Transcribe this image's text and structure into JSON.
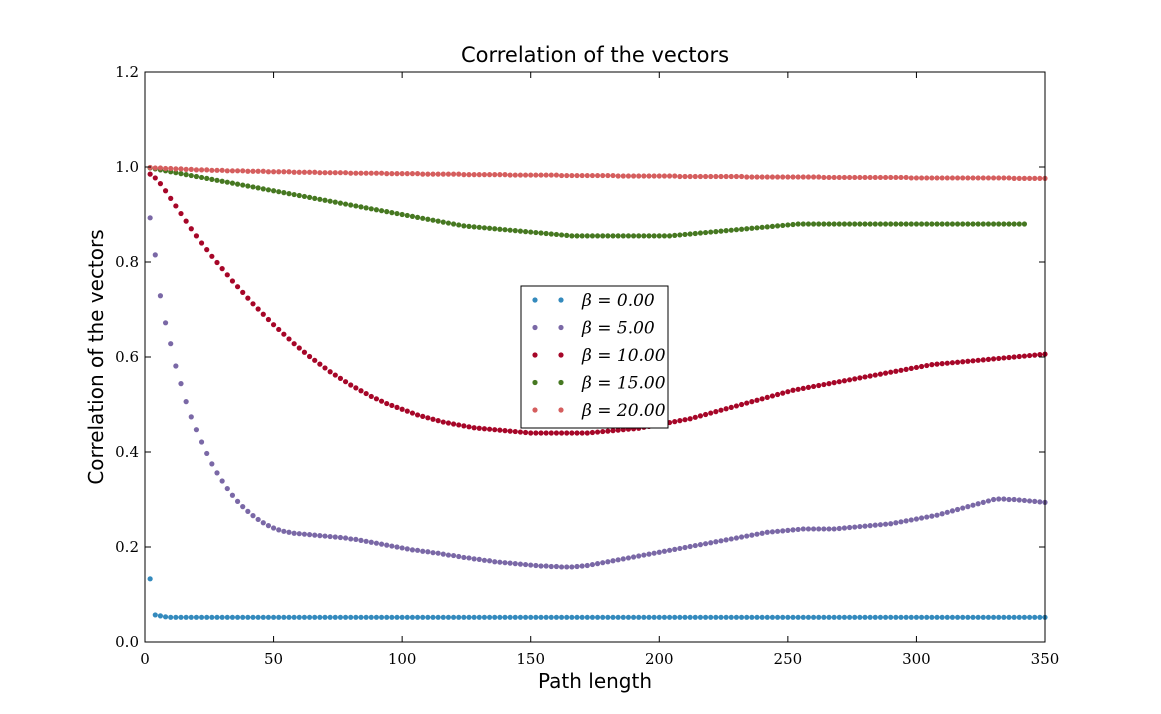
{
  "chart_data": {
    "type": "scatter",
    "title": "Correlation of the vectors",
    "xlabel": "Path length",
    "ylabel": "Correlation of the vectors",
    "xlim": [
      0,
      350
    ],
    "ylim": [
      0.0,
      1.2
    ],
    "xticks": [
      0,
      50,
      100,
      150,
      200,
      250,
      300,
      350
    ],
    "yticks": [
      0.0,
      0.2,
      0.4,
      0.6,
      0.8,
      1.0,
      1.2
    ],
    "xtick_labels": [
      "0",
      "50",
      "100",
      "150",
      "200",
      "250",
      "300",
      "350"
    ],
    "ytick_labels": [
      "0.0",
      "0.2",
      "0.4",
      "0.6",
      "0.8",
      "1.0",
      "1.2"
    ],
    "grid": false,
    "legend_position": "center",
    "x_step": 2,
    "series": [
      {
        "name": "β = 0.00",
        "color": "#348ABD",
        "y": [
          0.133,
          0.057,
          0.055,
          0.053,
          0.052,
          0.052,
          0.052,
          0.052,
          0.052,
          0.052,
          0.052,
          0.052,
          0.052,
          0.052,
          0.052,
          0.052,
          0.052,
          0.052,
          0.052,
          0.052,
          0.052,
          0.052,
          0.052,
          0.052,
          0.052,
          0.052,
          0.052,
          0.052,
          0.052,
          0.052,
          0.052,
          0.052,
          0.052,
          0.052,
          0.052,
          0.052,
          0.052,
          0.052,
          0.052,
          0.052,
          0.052,
          0.052,
          0.052,
          0.052,
          0.052,
          0.052,
          0.052,
          0.052,
          0.052,
          0.052,
          0.052,
          0.052,
          0.052,
          0.052,
          0.052,
          0.052,
          0.052,
          0.052,
          0.052,
          0.052,
          0.052,
          0.052,
          0.052,
          0.052,
          0.052,
          0.052,
          0.052,
          0.052,
          0.052,
          0.052,
          0.052,
          0.052,
          0.052,
          0.052,
          0.052,
          0.052,
          0.052,
          0.052,
          0.052,
          0.052,
          0.052,
          0.052,
          0.052,
          0.052,
          0.052,
          0.052,
          0.052,
          0.052,
          0.052,
          0.052,
          0.052,
          0.052,
          0.052,
          0.052,
          0.052,
          0.052,
          0.052,
          0.052,
          0.052,
          0.052,
          0.052,
          0.052,
          0.052,
          0.052,
          0.052,
          0.052,
          0.052,
          0.052,
          0.052,
          0.052,
          0.052,
          0.052,
          0.052,
          0.052,
          0.052,
          0.052,
          0.052,
          0.052,
          0.052,
          0.052,
          0.052,
          0.052,
          0.052,
          0.052,
          0.052,
          0.052,
          0.052,
          0.052,
          0.052,
          0.052,
          0.052,
          0.052,
          0.052,
          0.052,
          0.052,
          0.052,
          0.052,
          0.052,
          0.052,
          0.052,
          0.052,
          0.052,
          0.052,
          0.052,
          0.052,
          0.052,
          0.052,
          0.052,
          0.052,
          0.052,
          0.052,
          0.052,
          0.052,
          0.052,
          0.052,
          0.052,
          0.052,
          0.052,
          0.052,
          0.052,
          0.052,
          0.052,
          0.052,
          0.052,
          0.052,
          0.052,
          0.052,
          0.052,
          0.052,
          0.052,
          0.052,
          0.052,
          0.052,
          0.052,
          0.052,
          0.052,
          0.052
        ]
      },
      {
        "name": "β = 5.00",
        "color": "#7A68A6",
        "y": [
          0.893,
          0.815,
          0.729,
          0.672,
          0.628,
          0.581,
          0.544,
          0.506,
          0.474,
          0.447,
          0.421,
          0.397,
          0.375,
          0.356,
          0.339,
          0.323,
          0.309,
          0.296,
          0.285,
          0.275,
          0.266,
          0.258,
          0.251,
          0.245,
          0.24,
          0.236,
          0.233,
          0.231,
          0.229,
          0.228,
          0.227,
          0.226,
          0.225,
          0.224,
          0.223,
          0.222,
          0.221,
          0.22,
          0.219,
          0.217,
          0.216,
          0.214,
          0.212,
          0.21,
          0.208,
          0.206,
          0.204,
          0.202,
          0.2,
          0.198,
          0.196,
          0.194,
          0.193,
          0.191,
          0.19,
          0.188,
          0.187,
          0.185,
          0.183,
          0.182,
          0.18,
          0.178,
          0.177,
          0.175,
          0.174,
          0.172,
          0.171,
          0.169,
          0.168,
          0.167,
          0.166,
          0.165,
          0.164,
          0.163,
          0.162,
          0.161,
          0.16,
          0.16,
          0.159,
          0.159,
          0.158,
          0.158,
          0.158,
          0.159,
          0.16,
          0.161,
          0.163,
          0.165,
          0.167,
          0.169,
          0.171,
          0.173,
          0.175,
          0.177,
          0.179,
          0.181,
          0.183,
          0.185,
          0.187,
          0.189,
          0.191,
          0.193,
          0.195,
          0.197,
          0.199,
          0.201,
          0.203,
          0.205,
          0.207,
          0.209,
          0.211,
          0.213,
          0.215,
          0.217,
          0.219,
          0.221,
          0.223,
          0.225,
          0.227,
          0.229,
          0.231,
          0.232,
          0.233,
          0.234,
          0.235,
          0.236,
          0.237,
          0.238,
          0.238,
          0.238,
          0.238,
          0.238,
          0.238,
          0.238,
          0.239,
          0.24,
          0.241,
          0.242,
          0.243,
          0.244,
          0.245,
          0.246,
          0.247,
          0.248,
          0.249,
          0.251,
          0.253,
          0.255,
          0.257,
          0.259,
          0.261,
          0.263,
          0.265,
          0.267,
          0.27,
          0.273,
          0.276,
          0.279,
          0.282,
          0.285,
          0.288,
          0.291,
          0.294,
          0.297,
          0.3,
          0.301,
          0.301,
          0.3,
          0.3,
          0.299,
          0.298,
          0.297,
          0.296,
          0.295,
          0.294,
          0.293,
          0.292,
          0.292,
          0.292,
          0.292
        ]
      },
      {
        "name": "β = 10.00",
        "color": "#A60628",
        "y": [
          0.985,
          0.977,
          0.965,
          0.95,
          0.934,
          0.918,
          0.902,
          0.886,
          0.87,
          0.855,
          0.84,
          0.826,
          0.812,
          0.799,
          0.786,
          0.773,
          0.76,
          0.748,
          0.736,
          0.724,
          0.712,
          0.701,
          0.69,
          0.679,
          0.668,
          0.658,
          0.648,
          0.638,
          0.628,
          0.619,
          0.61,
          0.601,
          0.593,
          0.585,
          0.577,
          0.569,
          0.562,
          0.555,
          0.548,
          0.541,
          0.535,
          0.529,
          0.523,
          0.517,
          0.512,
          0.507,
          0.502,
          0.498,
          0.494,
          0.49,
          0.486,
          0.482,
          0.478,
          0.475,
          0.472,
          0.469,
          0.466,
          0.463,
          0.461,
          0.459,
          0.457,
          0.455,
          0.453,
          0.451,
          0.45,
          0.449,
          0.448,
          0.447,
          0.446,
          0.445,
          0.444,
          0.443,
          0.442,
          0.441,
          0.44,
          0.44,
          0.44,
          0.44,
          0.44,
          0.44,
          0.44,
          0.44,
          0.44,
          0.44,
          0.44,
          0.44,
          0.441,
          0.442,
          0.443,
          0.444,
          0.445,
          0.446,
          0.447,
          0.448,
          0.449,
          0.45,
          0.452,
          0.454,
          0.456,
          0.458,
          0.46,
          0.462,
          0.464,
          0.466,
          0.468,
          0.47,
          0.473,
          0.476,
          0.479,
          0.482,
          0.485,
          0.488,
          0.491,
          0.494,
          0.497,
          0.5,
          0.503,
          0.506,
          0.509,
          0.512,
          0.515,
          0.518,
          0.521,
          0.524,
          0.527,
          0.53,
          0.532,
          0.534,
          0.536,
          0.538,
          0.54,
          0.542,
          0.544,
          0.546,
          0.548,
          0.55,
          0.552,
          0.554,
          0.556,
          0.558,
          0.56,
          0.562,
          0.564,
          0.566,
          0.568,
          0.57,
          0.572,
          0.574,
          0.576,
          0.578,
          0.58,
          0.582,
          0.584,
          0.585,
          0.586,
          0.587,
          0.588,
          0.589,
          0.59,
          0.591,
          0.592,
          0.593,
          0.594,
          0.595,
          0.596,
          0.597,
          0.598,
          0.599,
          0.6,
          0.601,
          0.602,
          0.603,
          0.604,
          0.605,
          0.606,
          0.607,
          0.608
        ]
      },
      {
        "name": "β = 15.00",
        "color": "#467821",
        "y": [
          0.998,
          0.996,
          0.994,
          0.992,
          0.99,
          0.988,
          0.986,
          0.984,
          0.982,
          0.98,
          0.978,
          0.976,
          0.974,
          0.972,
          0.97,
          0.968,
          0.966,
          0.964,
          0.962,
          0.96,
          0.958,
          0.956,
          0.954,
          0.952,
          0.95,
          0.948,
          0.946,
          0.944,
          0.942,
          0.94,
          0.938,
          0.936,
          0.934,
          0.932,
          0.93,
          0.928,
          0.926,
          0.924,
          0.922,
          0.92,
          0.918,
          0.916,
          0.914,
          0.912,
          0.91,
          0.908,
          0.906,
          0.904,
          0.902,
          0.9,
          0.898,
          0.896,
          0.894,
          0.892,
          0.89,
          0.888,
          0.886,
          0.884,
          0.882,
          0.88,
          0.878,
          0.876,
          0.875,
          0.874,
          0.873,
          0.872,
          0.871,
          0.87,
          0.869,
          0.868,
          0.867,
          0.866,
          0.865,
          0.864,
          0.863,
          0.862,
          0.861,
          0.86,
          0.859,
          0.858,
          0.857,
          0.856,
          0.855,
          0.855,
          0.855,
          0.855,
          0.855,
          0.855,
          0.855,
          0.855,
          0.855,
          0.855,
          0.855,
          0.855,
          0.855,
          0.855,
          0.855,
          0.855,
          0.855,
          0.855,
          0.855,
          0.855,
          0.856,
          0.857,
          0.858,
          0.859,
          0.86,
          0.861,
          0.862,
          0.863,
          0.864,
          0.865,
          0.866,
          0.867,
          0.868,
          0.869,
          0.87,
          0.871,
          0.872,
          0.873,
          0.874,
          0.875,
          0.876,
          0.877,
          0.878,
          0.879,
          0.88,
          0.88,
          0.88,
          0.88,
          0.88,
          0.88,
          0.88,
          0.88,
          0.88,
          0.88,
          0.88,
          0.88,
          0.88,
          0.88,
          0.88,
          0.88,
          0.88,
          0.88,
          0.88,
          0.88,
          0.88,
          0.88,
          0.88,
          0.88,
          0.88,
          0.88,
          0.88,
          0.88,
          0.88,
          0.88,
          0.88,
          0.88,
          0.88,
          0.88,
          0.88,
          0.88,
          0.88,
          0.88,
          0.88,
          0.88,
          0.88,
          0.88,
          0.88,
          0.88,
          0.88
        ]
      },
      {
        "name": "β = 20.00",
        "color": "#D55E5E",
        "y": [
          0.999,
          0.998,
          0.998,
          0.997,
          0.997,
          0.996,
          0.996,
          0.995,
          0.995,
          0.994,
          0.994,
          0.994,
          0.993,
          0.993,
          0.993,
          0.992,
          0.992,
          0.992,
          0.992,
          0.991,
          0.991,
          0.991,
          0.991,
          0.99,
          0.99,
          0.99,
          0.99,
          0.99,
          0.989,
          0.989,
          0.989,
          0.989,
          0.989,
          0.988,
          0.988,
          0.988,
          0.988,
          0.988,
          0.988,
          0.987,
          0.987,
          0.987,
          0.987,
          0.987,
          0.987,
          0.987,
          0.986,
          0.986,
          0.986,
          0.986,
          0.986,
          0.986,
          0.986,
          0.985,
          0.985,
          0.985,
          0.985,
          0.985,
          0.985,
          0.985,
          0.985,
          0.984,
          0.984,
          0.984,
          0.984,
          0.984,
          0.984,
          0.984,
          0.984,
          0.984,
          0.983,
          0.983,
          0.983,
          0.983,
          0.983,
          0.983,
          0.983,
          0.983,
          0.983,
          0.983,
          0.982,
          0.982,
          0.982,
          0.982,
          0.982,
          0.982,
          0.982,
          0.982,
          0.982,
          0.982,
          0.982,
          0.981,
          0.981,
          0.981,
          0.981,
          0.981,
          0.981,
          0.981,
          0.981,
          0.981,
          0.981,
          0.981,
          0.981,
          0.98,
          0.98,
          0.98,
          0.98,
          0.98,
          0.98,
          0.98,
          0.98,
          0.98,
          0.98,
          0.98,
          0.98,
          0.98,
          0.979,
          0.979,
          0.979,
          0.979,
          0.979,
          0.979,
          0.979,
          0.979,
          0.979,
          0.979,
          0.979,
          0.979,
          0.979,
          0.979,
          0.979,
          0.978,
          0.978,
          0.978,
          0.978,
          0.978,
          0.978,
          0.978,
          0.978,
          0.978,
          0.978,
          0.978,
          0.978,
          0.978,
          0.978,
          0.978,
          0.978,
          0.978,
          0.977,
          0.977,
          0.977,
          0.977,
          0.977,
          0.977,
          0.977,
          0.977,
          0.977,
          0.977,
          0.977,
          0.977,
          0.977,
          0.977,
          0.977,
          0.977,
          0.977,
          0.977,
          0.977,
          0.977,
          0.976,
          0.976,
          0.976,
          0.976,
          0.976,
          0.976,
          0.976
        ]
      }
    ]
  }
}
